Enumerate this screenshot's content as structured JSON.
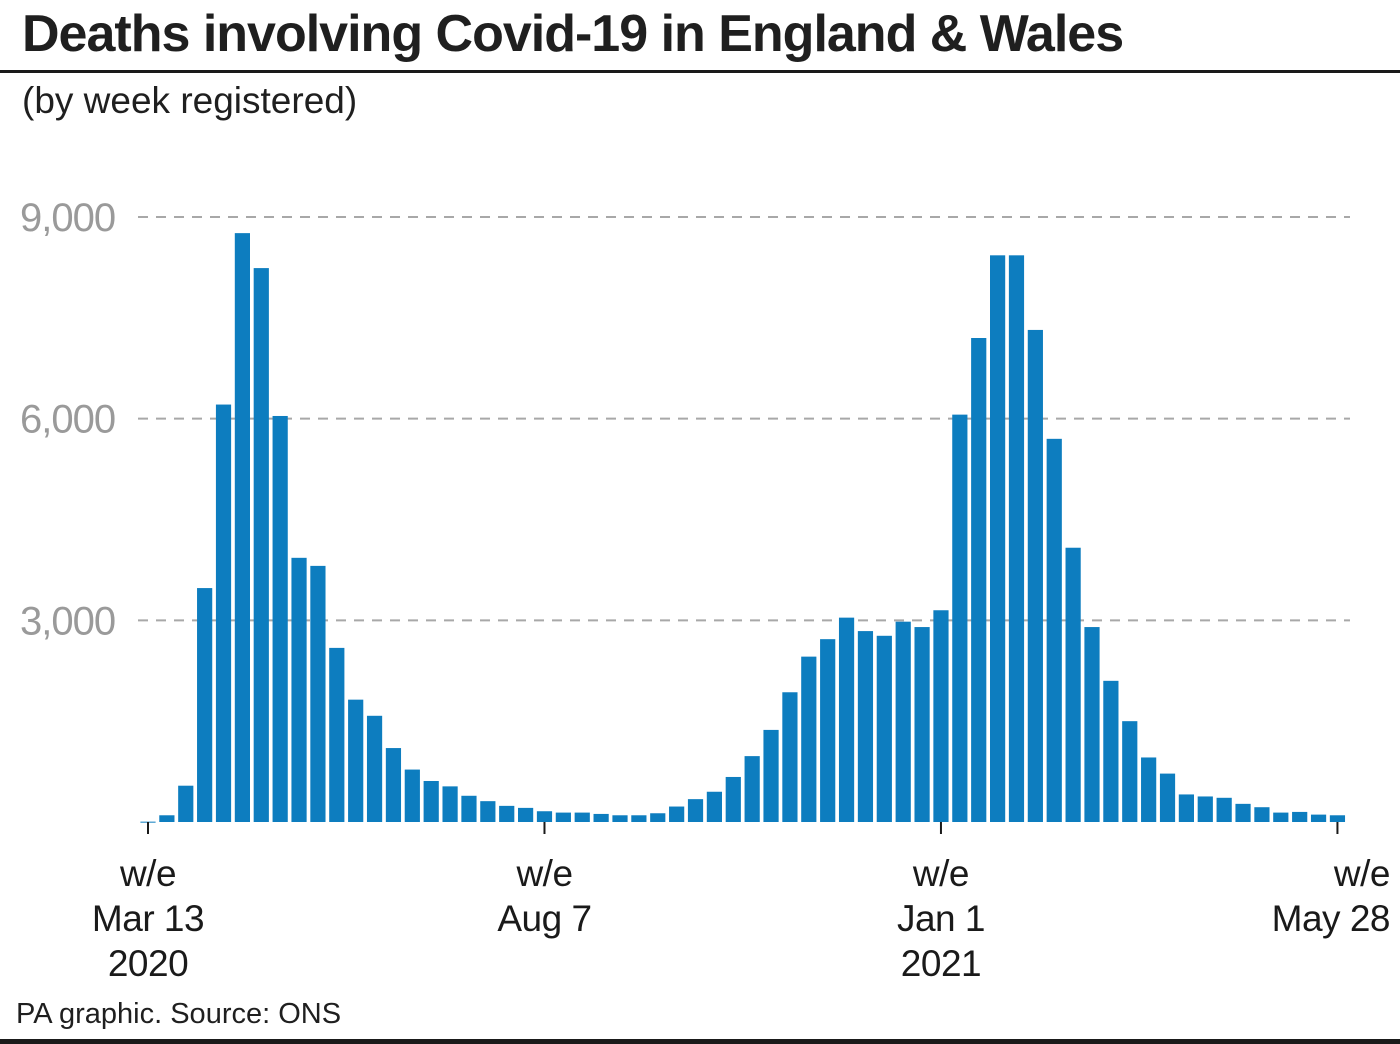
{
  "header": {
    "title": "Deaths involving Covid-19 in England & Wales",
    "subtitle": "(by week registered)"
  },
  "footer": {
    "source": "PA graphic. Source: ONS"
  },
  "colors": {
    "bar": "#0d7dbf",
    "grid": "#a8a8a8",
    "tick_label": "#9a9a9a",
    "text": "#1a1a1a"
  },
  "chart_data": {
    "type": "bar",
    "title": "Deaths involving Covid-19 in England & Wales",
    "subtitle": "(by week registered)",
    "ylim": [
      0,
      9000
    ],
    "yticks": [
      3000,
      6000,
      9000
    ],
    "ytick_labels": [
      "3,000",
      "6,000",
      "9,000"
    ],
    "grid": "horizontal dashed",
    "x_labels": [
      {
        "index": 0,
        "lines": [
          "w/e",
          "Mar 13",
          "2020"
        ]
      },
      {
        "index": 21,
        "lines": [
          "w/e",
          "Aug 7"
        ]
      },
      {
        "index": 42,
        "lines": [
          "w/e",
          "Jan 1",
          "2021"
        ]
      },
      {
        "index": 63,
        "lines": [
          "w/e",
          "May 28"
        ]
      }
    ],
    "series": [
      {
        "values": [
          5,
          100,
          540,
          3480,
          6210,
          8760,
          8240,
          6040,
          3930,
          3810,
          2590,
          1820,
          1580,
          1100,
          780,
          610,
          530,
          390,
          310,
          240,
          210,
          160,
          140,
          140,
          120,
          100,
          100,
          130,
          230,
          340,
          450,
          670,
          980,
          1370,
          1930,
          2460,
          2720,
          3040,
          2840,
          2770,
          2980,
          2900,
          3150,
          6060,
          7200,
          8430,
          8430,
          7320,
          5700,
          4080,
          2900,
          2100,
          1500,
          960,
          720,
          410,
          380,
          360,
          270,
          220,
          140,
          150,
          110,
          100
        ]
      }
    ]
  }
}
